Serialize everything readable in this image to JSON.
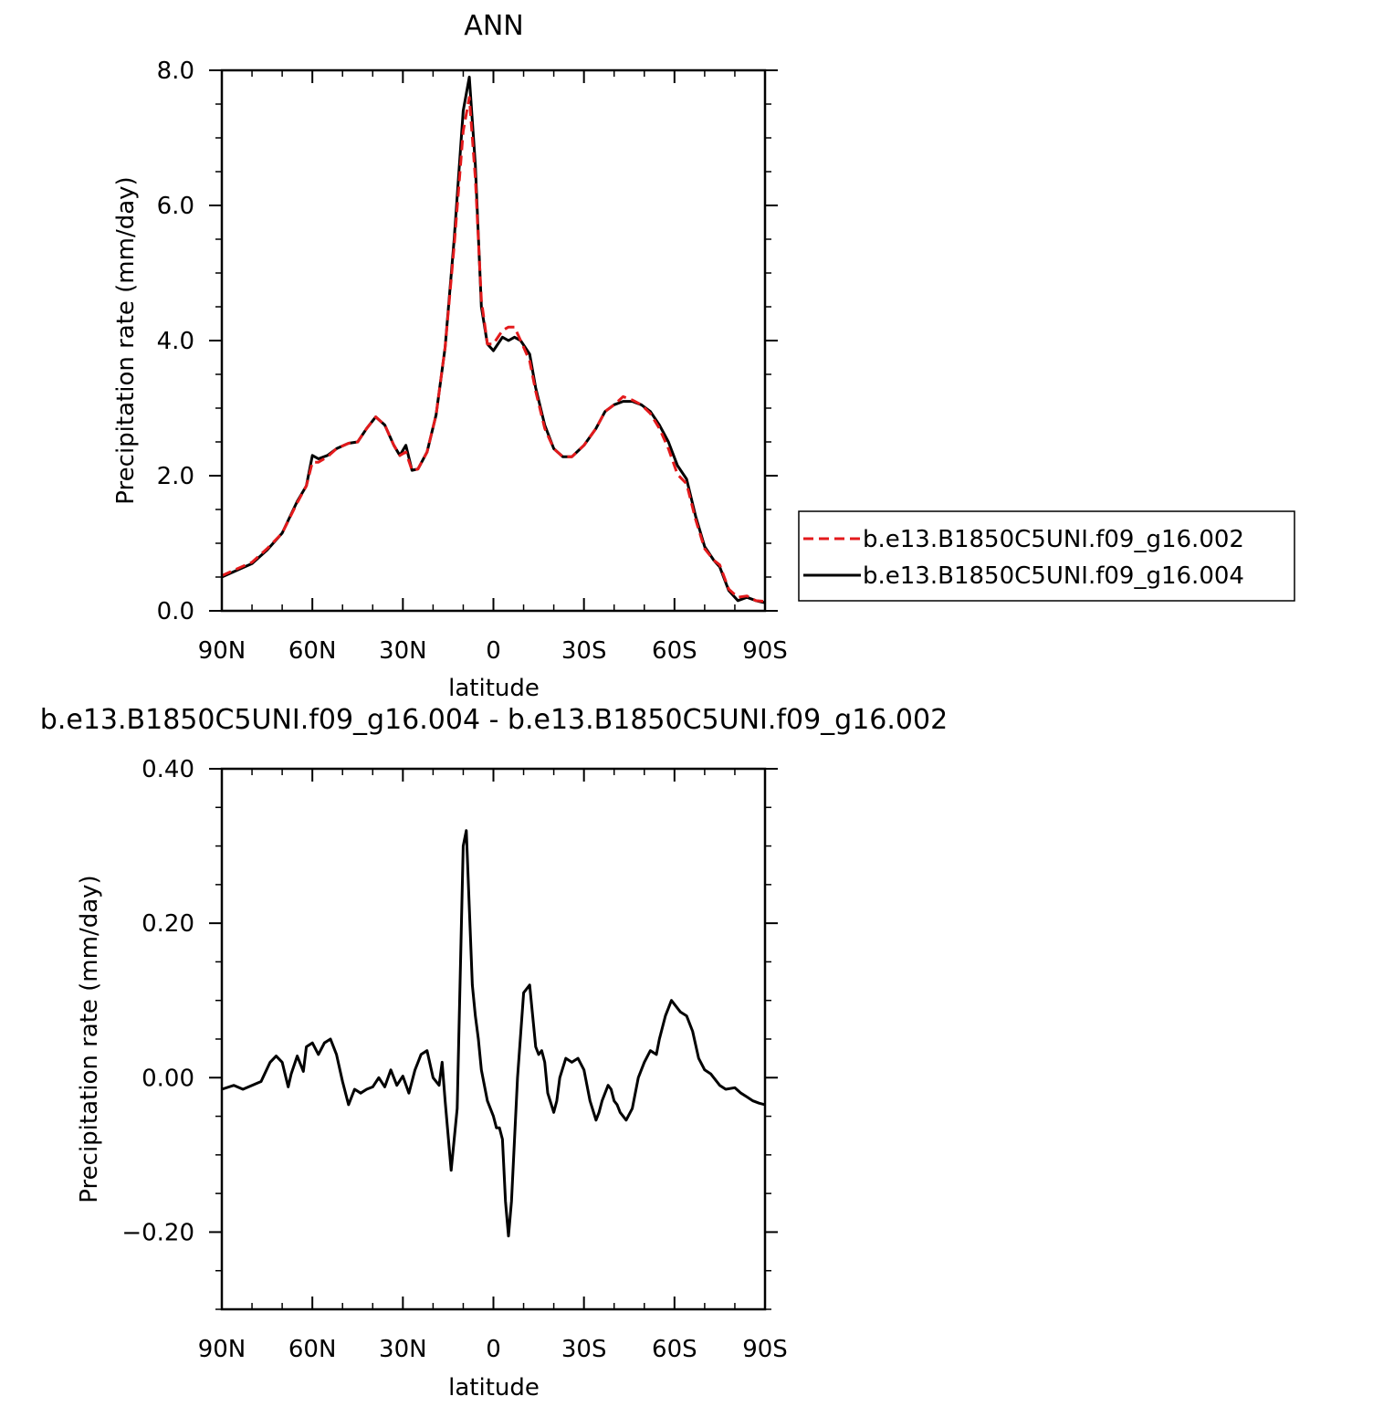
{
  "chart_data": [
    {
      "type": "line",
      "title": "ANN",
      "xlabel": "latitude",
      "ylabel": "Precipitation rate (mm/day)",
      "xlim": [
        90,
        -90
      ],
      "ylim": [
        0,
        8
      ],
      "xticks": [
        90,
        60,
        30,
        0,
        -30,
        -60,
        -90
      ],
      "xtick_labels": [
        "90N",
        "60N",
        "30N",
        "0",
        "30S",
        "60S",
        "90S"
      ],
      "yticks": [
        0,
        2,
        4,
        6,
        8
      ],
      "ytick_labels": [
        "0.0",
        "2.0",
        "4.0",
        "6.0",
        "8.0"
      ],
      "grid": false,
      "legend_position": "right",
      "series": [
        {
          "name": "b.e13.B1850C5UNI.f09_g16.002",
          "color": "#e31a1c",
          "dash": "dashed",
          "x": [
            90,
            85,
            80,
            75,
            70,
            65,
            62,
            60,
            58,
            55,
            52,
            48,
            45,
            42,
            39,
            36,
            33,
            31,
            29,
            27,
            25,
            22,
            19,
            16,
            13,
            10,
            8,
            6,
            4,
            2,
            0,
            -3,
            -5,
            -7,
            -9,
            -12,
            -14,
            -17,
            -20,
            -23,
            -26,
            -30,
            -34,
            -37,
            -40,
            -43,
            -46,
            -49,
            -52,
            -55,
            -58,
            -61,
            -64,
            -67,
            -70,
            -73,
            -75,
            -78,
            -81,
            -84,
            -87,
            -90
          ],
          "y": [
            0.52,
            0.62,
            0.72,
            0.92,
            1.15,
            1.6,
            1.85,
            2.2,
            2.2,
            2.28,
            2.4,
            2.48,
            2.5,
            2.7,
            2.87,
            2.75,
            2.45,
            2.3,
            2.35,
            2.08,
            2.1,
            2.35,
            2.9,
            3.9,
            5.4,
            7.1,
            7.6,
            6.4,
            4.6,
            3.95,
            3.95,
            4.15,
            4.2,
            4.2,
            4.0,
            3.7,
            3.25,
            2.7,
            2.4,
            2.28,
            2.28,
            2.45,
            2.7,
            2.95,
            3.05,
            3.17,
            3.12,
            3.05,
            2.92,
            2.7,
            2.4,
            2.02,
            1.88,
            1.35,
            0.92,
            0.75,
            0.68,
            0.32,
            0.2,
            0.22,
            0.15,
            0.14
          ]
        },
        {
          "name": "b.e13.B1850C5UNI.f09_g16.004",
          "color": "#000000",
          "dash": "solid",
          "x": [
            90,
            85,
            80,
            75,
            70,
            65,
            62,
            60,
            58,
            55,
            52,
            48,
            45,
            42,
            39,
            36,
            33,
            31,
            29,
            27,
            25,
            22,
            19,
            16,
            13,
            10,
            8,
            6,
            4,
            2,
            0,
            -3,
            -5,
            -7,
            -9,
            -12,
            -14,
            -17,
            -20,
            -23,
            -26,
            -30,
            -34,
            -37,
            -40,
            -43,
            -46,
            -49,
            -52,
            -55,
            -58,
            -61,
            -64,
            -67,
            -70,
            -73,
            -75,
            -78,
            -81,
            -84,
            -87,
            -90
          ],
          "y": [
            0.5,
            0.6,
            0.7,
            0.9,
            1.15,
            1.62,
            1.85,
            2.3,
            2.25,
            2.3,
            2.4,
            2.48,
            2.5,
            2.7,
            2.87,
            2.75,
            2.45,
            2.3,
            2.45,
            2.08,
            2.1,
            2.35,
            2.9,
            3.9,
            5.5,
            7.4,
            7.9,
            6.6,
            4.5,
            3.95,
            3.85,
            4.05,
            4.0,
            4.05,
            4.0,
            3.8,
            3.3,
            2.75,
            2.4,
            2.28,
            2.28,
            2.45,
            2.7,
            2.95,
            3.05,
            3.1,
            3.1,
            3.05,
            2.95,
            2.75,
            2.5,
            2.15,
            1.95,
            1.4,
            0.95,
            0.75,
            0.65,
            0.3,
            0.15,
            0.2,
            0.15,
            0.12
          ]
        }
      ]
    },
    {
      "type": "line",
      "title": "b.e13.B1850C5UNI.f09_g16.004 - b.e13.B1850C5UNI.f09_g16.002",
      "xlabel": "latitude",
      "ylabel": "Precipitation rate (mm/day)",
      "xlim": [
        90,
        -90
      ],
      "ylim": [
        -0.3,
        0.4
      ],
      "xticks": [
        90,
        60,
        30,
        0,
        -30,
        -60,
        -90
      ],
      "xtick_labels": [
        "90N",
        "60N",
        "30N",
        "0",
        "30S",
        "60S",
        "90S"
      ],
      "yticks": [
        -0.2,
        0,
        0.2,
        0.4
      ],
      "ytick_labels": [
        "−0.20",
        "0.00",
        "0.20",
        "0.40"
      ],
      "grid": false,
      "series": [
        {
          "color": "#000000",
          "dash": "solid",
          "x": [
            90,
            86,
            83,
            80,
            77,
            74,
            72,
            70,
            68,
            67,
            65,
            63,
            62,
            60,
            58,
            56,
            54,
            52,
            50,
            48,
            46,
            44,
            42,
            40,
            38,
            36,
            34,
            32,
            30,
            28,
            26,
            25,
            24,
            22,
            20,
            18,
            17,
            16,
            14,
            12,
            10,
            9,
            7,
            6,
            5,
            4,
            2,
            0,
            -1,
            -2,
            -3,
            -4,
            -5,
            -6,
            -7,
            -8,
            -10,
            -12,
            -13,
            -14,
            -15,
            -16,
            -17,
            -18,
            -20,
            -21,
            -22,
            -24,
            -26,
            -28,
            -30,
            -32,
            -34,
            -35,
            -36,
            -37,
            -38,
            -39,
            -40,
            -41,
            -42,
            -43,
            -44,
            -46,
            -48,
            -50,
            -52,
            -54,
            -55,
            -57,
            -58,
            -59,
            -60,
            -62,
            -64,
            -66,
            -68,
            -70,
            -72,
            -75,
            -77,
            -80,
            -82,
            -84,
            -86,
            -88,
            -90
          ],
          "y": [
            -0.015,
            -0.01,
            -0.015,
            -0.01,
            -0.005,
            0.02,
            0.028,
            0.02,
            -0.012,
            0.005,
            0.028,
            0.008,
            0.04,
            0.045,
            0.03,
            0.045,
            0.05,
            0.03,
            -0.005,
            -0.035,
            -0.015,
            -0.02,
            -0.015,
            -0.012,
            0.0,
            -0.012,
            0.01,
            -0.01,
            0.002,
            -0.02,
            0.01,
            0.02,
            0.03,
            0.035,
            0.0,
            -0.01,
            0.02,
            -0.03,
            -0.12,
            -0.04,
            0.3,
            0.32,
            0.12,
            0.08,
            0.05,
            0.01,
            -0.03,
            -0.05,
            -0.065,
            -0.065,
            -0.08,
            -0.16,
            -0.205,
            -0.16,
            -0.08,
            0.0,
            0.11,
            0.12,
            0.08,
            0.04,
            0.03,
            0.035,
            0.02,
            -0.02,
            -0.045,
            -0.03,
            0.0,
            0.025,
            0.02,
            0.025,
            0.01,
            -0.03,
            -0.055,
            -0.045,
            -0.03,
            -0.02,
            -0.01,
            -0.015,
            -0.03,
            -0.035,
            -0.045,
            -0.05,
            -0.055,
            -0.04,
            0.0,
            0.02,
            0.035,
            0.03,
            0.05,
            0.08,
            0.09,
            0.1,
            0.095,
            0.085,
            0.08,
            0.06,
            0.025,
            0.01,
            0.005,
            -0.01,
            -0.015,
            -0.013,
            -0.02,
            -0.025,
            -0.03,
            -0.033,
            -0.035
          ]
        }
      ]
    }
  ]
}
